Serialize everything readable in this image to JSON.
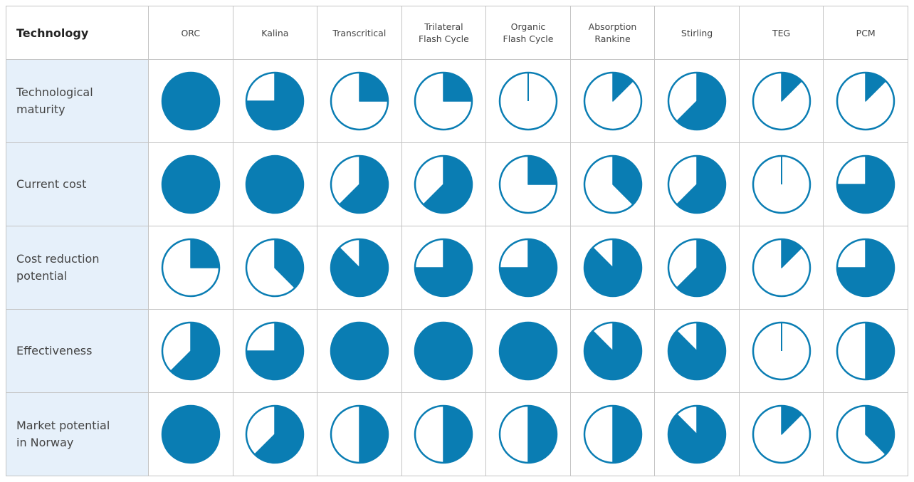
{
  "table": {
    "header": {
      "first": "Technology",
      "columns": [
        "ORC",
        "Kalina",
        "Transcritical",
        "Trilateral Flash Cycle",
        "Organic Flash Cycle",
        "Absorption Rankine",
        "Stirling",
        "TEG",
        "PCM"
      ]
    },
    "rows": [
      {
        "label": "Technological maturity",
        "values": [
          1,
          0.75,
          0.25,
          0.25,
          0,
          0.125,
          0.625,
          0.125,
          0.125
        ]
      },
      {
        "label": "Current cost",
        "values": [
          1,
          1,
          0.625,
          0.625,
          0.25,
          0.375,
          0.625,
          0,
          0.75
        ]
      },
      {
        "label": "Cost reduction potential",
        "values": [
          0.25,
          0.375,
          0.875,
          0.75,
          0.75,
          0.875,
          0.625,
          0.125,
          0.75
        ]
      },
      {
        "label": "Effectiveness",
        "values": [
          0.625,
          0.75,
          1,
          1,
          1,
          0.875,
          0.875,
          0,
          0.5
        ]
      },
      {
        "label": "Market potential in Norway",
        "values": [
          1,
          0.625,
          0.5,
          0.5,
          0.5,
          0.5,
          0.875,
          0.125,
          0.375
        ]
      }
    ],
    "color": "#0a7db3"
  }
}
